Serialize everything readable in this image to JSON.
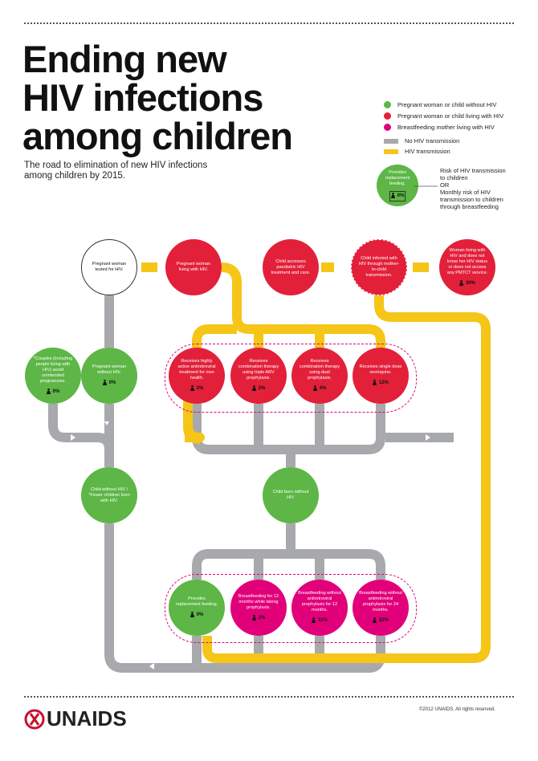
{
  "header": {
    "title_lines": [
      "Ending new",
      "HIV infections",
      "among children"
    ],
    "subtitle": "The road to elimination of new HIV infections among children by 2015."
  },
  "legend": {
    "items": [
      {
        "label": "Pregnant woman or child without HIV"
      },
      {
        "label": "Pregnant woman or child living with HIV"
      },
      {
        "label": "Breastfeeding mother living with HIV"
      },
      {
        "label": "No HIV transmission"
      },
      {
        "label": "HIV transmission"
      }
    ],
    "example": {
      "label": "Provides replacement feeding.",
      "risk": "0%"
    },
    "notes": [
      "Risk of HIV transmission to children",
      "OR",
      "Monthly risk of HIV transmission to children through breastfeeding"
    ]
  },
  "nodes": [
    {
      "label": "Pregnant woman tested for HIV."
    },
    {
      "label": "Pregnant woman living with HIV."
    },
    {
      "label": "Child accesses paediatric HIV treatment and care."
    },
    {
      "label": "Child infected with HIV through mother-to-child transmission."
    },
    {
      "label": "Woman living with HIV and does not know her HIV status or does not access any PMTCT service.",
      "risk": "30%"
    },
    {
      "label": "*Couples (including people living with HIV) avoid unintended pregnancies.",
      "risk": "0%"
    },
    {
      "label": "Pregnant woman without HIV.",
      "risk": "0%"
    },
    {
      "label": "Receives highly active antiretroviral treatment for own health.",
      "risk": "2%"
    },
    {
      "label": "Receives combination therapy using triple ARV prophylaxis.",
      "risk": "2%"
    },
    {
      "label": "Receives combination therapy using dual prophylaxis.",
      "risk": "4%"
    },
    {
      "label": "Receives single dose nevirapine.",
      "risk": "12%"
    },
    {
      "label": "Child without HIV / *Fewer children born with HIV."
    },
    {
      "label": "Child born without HIV."
    },
    {
      "label": "Provides replacement feeding.",
      "risk": "0%"
    },
    {
      "label": "Breastfeeding for 12 months while taking prophylaxis.",
      "risk": "2%"
    },
    {
      "label": "Breastfeeding without antiretroviral prophylaxis for 12 months.",
      "risk": "11%"
    },
    {
      "label": "Breastfeeding without antiretroviral prophylaxis for 24 months.",
      "risk": "22%"
    }
  ],
  "footer": {
    "logo": "UNAIDS",
    "copyright": "©2012 UNAIDS. All rights reserved."
  }
}
